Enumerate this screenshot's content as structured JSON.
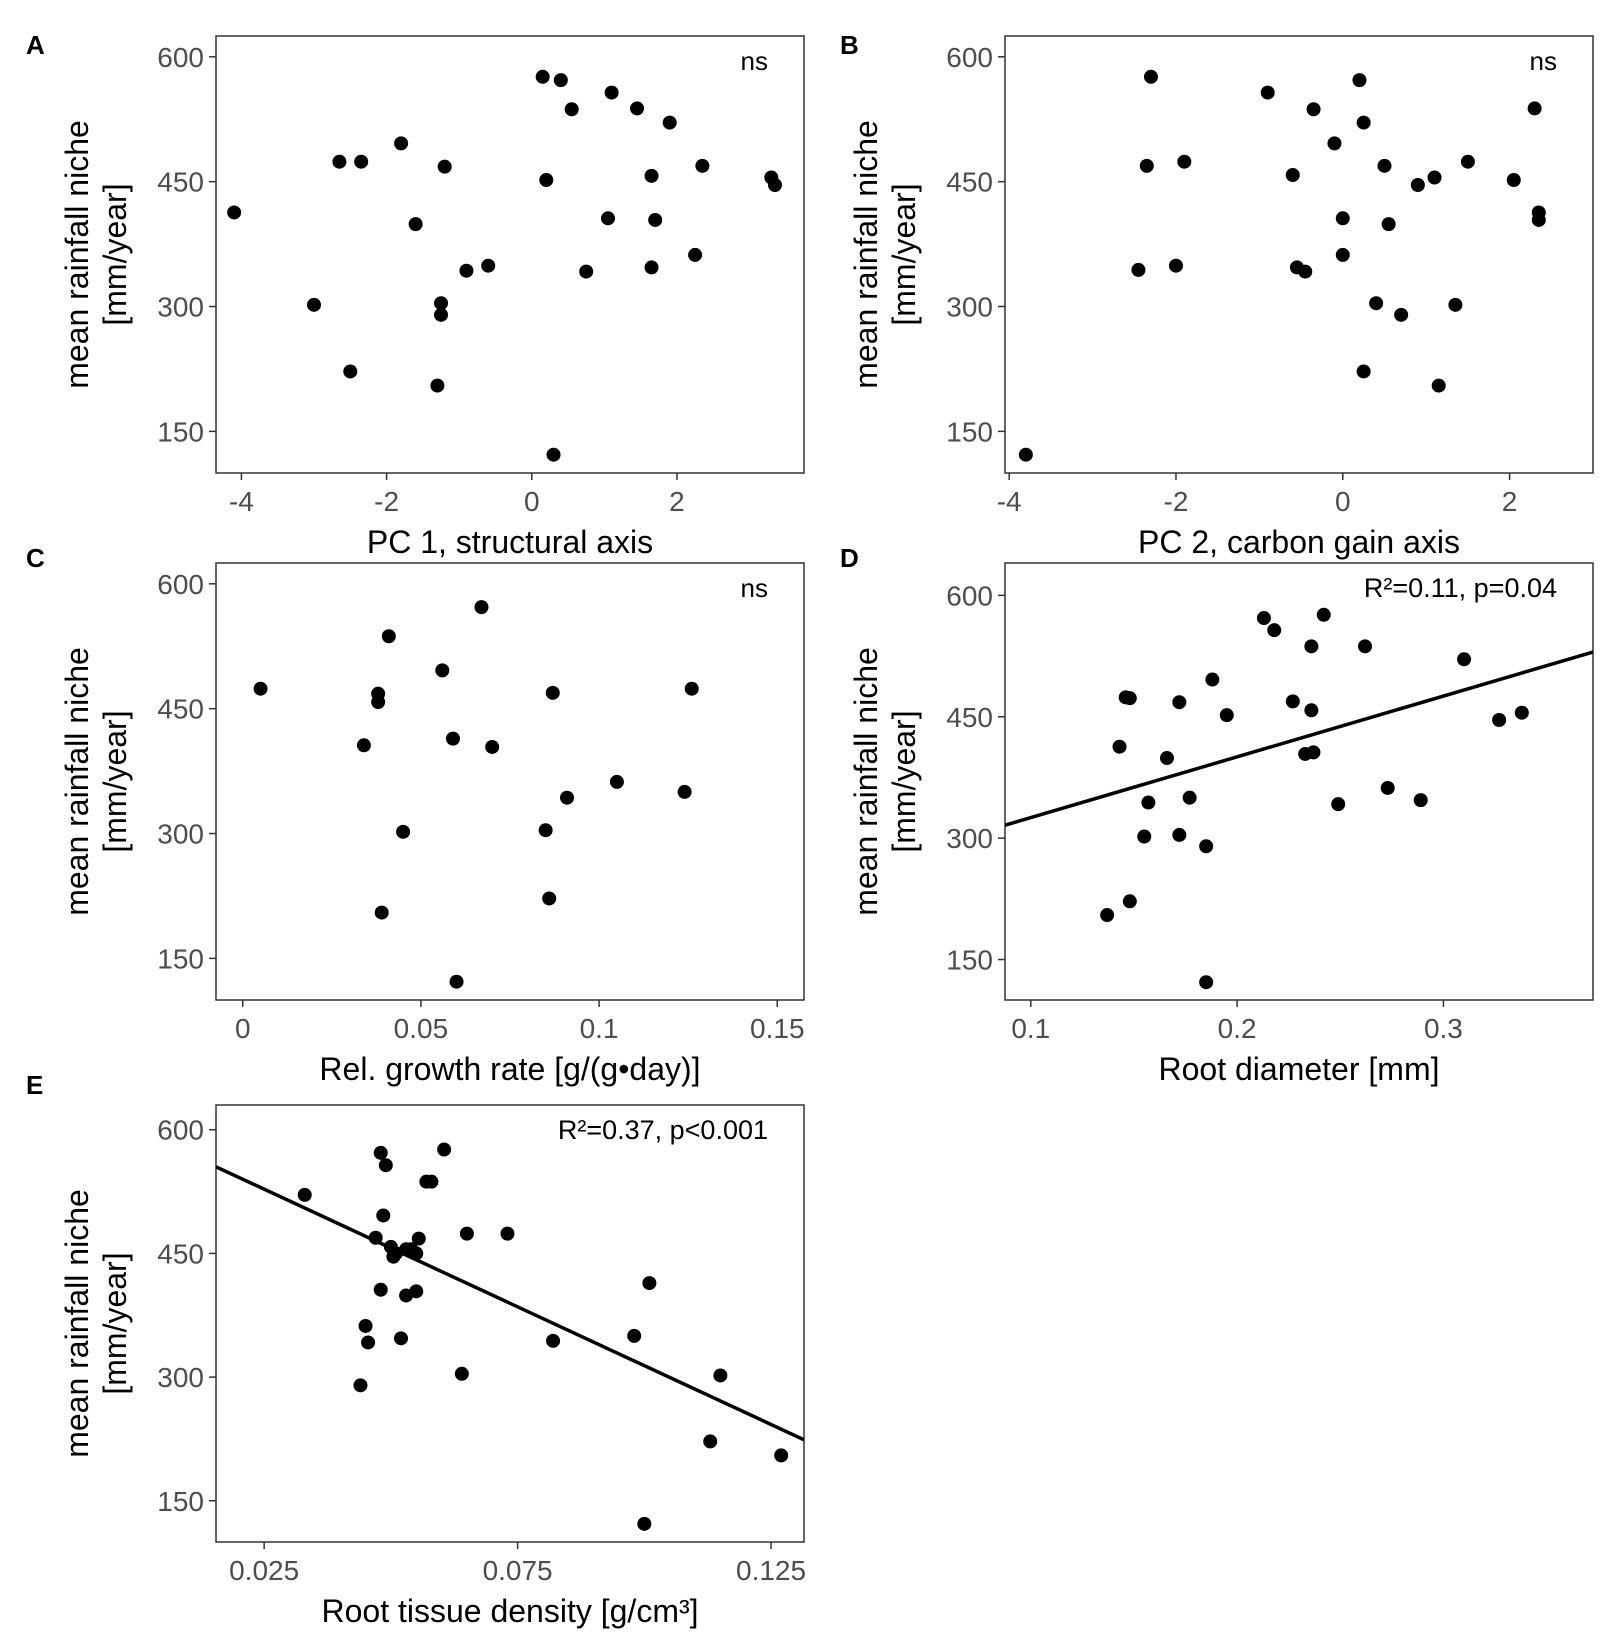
{
  "figure": {
    "style": {
      "point_color": "#000000",
      "axis_text_color": "#4d4d4d",
      "frame_color": "#333333",
      "line_color": "#000000"
    }
  },
  "chart_data": [
    {
      "type": "scatter",
      "panel_label": "A",
      "title": "",
      "xlabel": "PC 1, structural axis",
      "ylabel_lines": [
        "mean rainfall niche",
        "[mm/year]"
      ],
      "xlim": [
        -4.35,
        3.75
      ],
      "ylim": [
        100,
        625
      ],
      "xticks": [
        -4,
        -2,
        0,
        2
      ],
      "xtick_labels": [
        "-4",
        "-2",
        "0",
        "2"
      ],
      "yticks": [
        150,
        300,
        450,
        600
      ],
      "ytick_labels": [
        "150",
        "300",
        "450",
        "600"
      ],
      "annotation": "ns",
      "fit_line": null,
      "points": [
        [
          -4.1,
          413
        ],
        [
          -3.0,
          302
        ],
        [
          -2.65,
          474
        ],
        [
          -2.5,
          222
        ],
        [
          -2.35,
          474
        ],
        [
          -1.8,
          496
        ],
        [
          -1.6,
          399
        ],
        [
          -1.25,
          304
        ],
        [
          -1.25,
          290
        ],
        [
          -1.3,
          205
        ],
        [
          -1.2,
          468
        ],
        [
          -0.9,
          343
        ],
        [
          -0.6,
          349
        ],
        [
          0.15,
          576
        ],
        [
          0.4,
          572
        ],
        [
          0.2,
          452
        ],
        [
          0.55,
          537
        ],
        [
          0.3,
          122
        ],
        [
          0.75,
          342
        ],
        [
          1.05,
          406
        ],
        [
          1.1,
          557
        ],
        [
          1.45,
          538
        ],
        [
          1.65,
          457
        ],
        [
          1.7,
          404
        ],
        [
          1.65,
          347
        ],
        [
          1.9,
          521
        ],
        [
          2.25,
          362
        ],
        [
          2.35,
          469
        ],
        [
          3.3,
          455
        ],
        [
          3.35,
          446
        ]
      ]
    },
    {
      "type": "scatter",
      "panel_label": "B",
      "title": "",
      "xlabel": "PC 2, carbon gain axis",
      "ylabel_lines": [
        "mean rainfall niche",
        "[mm/year]"
      ],
      "xlim": [
        -4.05,
        3.0
      ],
      "ylim": [
        100,
        625
      ],
      "xticks": [
        -4,
        -2,
        0,
        2
      ],
      "xtick_labels": [
        "-4",
        "-2",
        "0",
        "2"
      ],
      "yticks": [
        150,
        300,
        450,
        600
      ],
      "ytick_labels": [
        "150",
        "300",
        "450",
        "600"
      ],
      "annotation": "ns",
      "fit_line": null,
      "points": [
        [
          -3.8,
          122
        ],
        [
          -2.45,
          344
        ],
        [
          -2.3,
          576
        ],
        [
          -2.35,
          469
        ],
        [
          -2.0,
          349
        ],
        [
          -1.9,
          474
        ],
        [
          -0.9,
          557
        ],
        [
          -0.6,
          458
        ],
        [
          -0.55,
          347
        ],
        [
          -0.45,
          342
        ],
        [
          -0.35,
          537
        ],
        [
          -0.1,
          496
        ],
        [
          0.2,
          572
        ],
        [
          0.0,
          406
        ],
        [
          0.0,
          362
        ],
        [
          0.25,
          521
        ],
        [
          0.25,
          222
        ],
        [
          0.4,
          304
        ],
        [
          0.5,
          469
        ],
        [
          0.55,
          399
        ],
        [
          0.7,
          290
        ],
        [
          0.9,
          446
        ],
        [
          1.1,
          455
        ],
        [
          1.15,
          205
        ],
        [
          1.35,
          302
        ],
        [
          1.5,
          474
        ],
        [
          2.05,
          452
        ],
        [
          2.3,
          538
        ],
        [
          2.35,
          413
        ],
        [
          2.35,
          404
        ]
      ]
    },
    {
      "type": "scatter",
      "panel_label": "C",
      "title": "",
      "xlabel": "Rel. growth rate [g/(g•day)]",
      "ylabel_lines": [
        "mean rainfall niche",
        "[mm/year]"
      ],
      "xlim": [
        -0.0075,
        0.1575
      ],
      "ylim": [
        100,
        625
      ],
      "xticks": [
        0,
        0.05,
        0.1,
        0.15
      ],
      "xtick_labels": [
        "0",
        "0.05",
        "0.1",
        "0.15"
      ],
      "yticks": [
        150,
        300,
        450,
        600
      ],
      "ytick_labels": [
        "150",
        "300",
        "450",
        "600"
      ],
      "annotation": "ns",
      "fit_line": null,
      "points": [
        [
          0.005,
          474
        ],
        [
          0.034,
          406
        ],
        [
          0.038,
          468
        ],
        [
          0.038,
          458
        ],
        [
          0.039,
          205
        ],
        [
          0.041,
          537
        ],
        [
          0.045,
          302
        ],
        [
          0.056,
          496
        ],
        [
          0.059,
          414
        ],
        [
          0.06,
          122
        ],
        [
          0.067,
          572
        ],
        [
          0.07,
          404
        ],
        [
          0.085,
          304
        ],
        [
          0.086,
          222
        ],
        [
          0.087,
          469
        ],
        [
          0.091,
          343
        ],
        [
          0.105,
          362
        ],
        [
          0.124,
          350
        ],
        [
          0.126,
          474
        ]
      ]
    },
    {
      "type": "scatter",
      "panel_label": "D",
      "title": "",
      "xlabel": "Root diameter [mm]",
      "ylabel_lines": [
        "mean rainfall niche",
        "[mm/year]"
      ],
      "xlim": [
        0.0875,
        0.3725
      ],
      "ylim": [
        100,
        640
      ],
      "xticks": [
        0.1,
        0.2,
        0.3
      ],
      "xtick_labels": [
        "0.1",
        "0.2",
        "0.3"
      ],
      "yticks": [
        150,
        300,
        450,
        600
      ],
      "ytick_labels": [
        "150",
        "300",
        "450",
        "600"
      ],
      "annotation": "R²=0.11, p=0.04",
      "fit_line": {
        "x": [
          0.0875,
          0.3725
        ],
        "y": [
          316,
          530
        ]
      },
      "points": [
        [
          0.137,
          205
        ],
        [
          0.143,
          413
        ],
        [
          0.146,
          474
        ],
        [
          0.148,
          222
        ],
        [
          0.148,
          473
        ],
        [
          0.155,
          302
        ],
        [
          0.157,
          344
        ],
        [
          0.166,
          399
        ],
        [
          0.172,
          468
        ],
        [
          0.172,
          304
        ],
        [
          0.177,
          350
        ],
        [
          0.185,
          290
        ],
        [
          0.185,
          122
        ],
        [
          0.188,
          496
        ],
        [
          0.195,
          452
        ],
        [
          0.213,
          572
        ],
        [
          0.218,
          557
        ],
        [
          0.227,
          469
        ],
        [
          0.233,
          404
        ],
        [
          0.236,
          458
        ],
        [
          0.236,
          537
        ],
        [
          0.237,
          406
        ],
        [
          0.242,
          576
        ],
        [
          0.249,
          342
        ],
        [
          0.262,
          537
        ],
        [
          0.273,
          362
        ],
        [
          0.289,
          347
        ],
        [
          0.31,
          521
        ],
        [
          0.327,
          446
        ],
        [
          0.338,
          455
        ]
      ]
    },
    {
      "type": "scatter",
      "panel_label": "E",
      "title": "",
      "xlabel": "Root tissue density [g/cm³]",
      "ylabel_lines": [
        "mean rainfall niche",
        "[mm/year]"
      ],
      "xlim": [
        0.0155,
        0.1315
      ],
      "ylim": [
        100,
        630
      ],
      "xticks": [
        0.025,
        0.075,
        0.125
      ],
      "xtick_labels": [
        "0.025",
        "0.075",
        "0.125"
      ],
      "yticks": [
        150,
        300,
        450,
        600
      ],
      "ytick_labels": [
        "150",
        "300",
        "450",
        "600"
      ],
      "annotation": "R²=0.37, p<0.001",
      "fit_line": {
        "x": [
          0.0155,
          0.1315
        ],
        "y": [
          555,
          224
        ]
      },
      "points": [
        [
          0.033,
          521
        ],
        [
          0.044,
          290
        ],
        [
          0.045,
          362
        ],
        [
          0.0455,
          342
        ],
        [
          0.047,
          469
        ],
        [
          0.048,
          572
        ],
        [
          0.048,
          406
        ],
        [
          0.0485,
          496
        ],
        [
          0.049,
          557
        ],
        [
          0.05,
          458
        ],
        [
          0.0505,
          446
        ],
        [
          0.051,
          450
        ],
        [
          0.052,
          347
        ],
        [
          0.053,
          399
        ],
        [
          0.053,
          455
        ],
        [
          0.054,
          455
        ],
        [
          0.055,
          450
        ],
        [
          0.055,
          404
        ],
        [
          0.0555,
          468
        ],
        [
          0.057,
          537
        ],
        [
          0.058,
          537
        ],
        [
          0.0605,
          576
        ],
        [
          0.064,
          304
        ],
        [
          0.065,
          474
        ],
        [
          0.073,
          474
        ],
        [
          0.082,
          344
        ],
        [
          0.098,
          350
        ],
        [
          0.1,
          122
        ],
        [
          0.101,
          414
        ],
        [
          0.113,
          222
        ],
        [
          0.115,
          302
        ],
        [
          0.127,
          205
        ]
      ]
    }
  ]
}
